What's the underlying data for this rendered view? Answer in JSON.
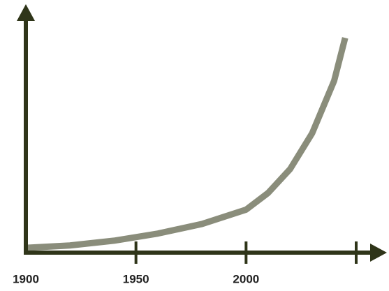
{
  "chart_data": {
    "type": "line",
    "x": [
      1900,
      1920,
      1940,
      1960,
      1980,
      2000,
      2010,
      2020,
      2030,
      2040,
      2045
    ],
    "series": [
      {
        "color": "#8a8d7b",
        "values": [
          2,
          3,
          5,
          8,
          12,
          18,
          25,
          35,
          50,
          72,
          90
        ]
      }
    ],
    "xlim": [
      1900,
      2050
    ],
    "xticks": [
      1900,
      1950,
      2000
    ],
    "ylim": [
      0,
      100
    ],
    "axis_color": "#2f3519"
  }
}
